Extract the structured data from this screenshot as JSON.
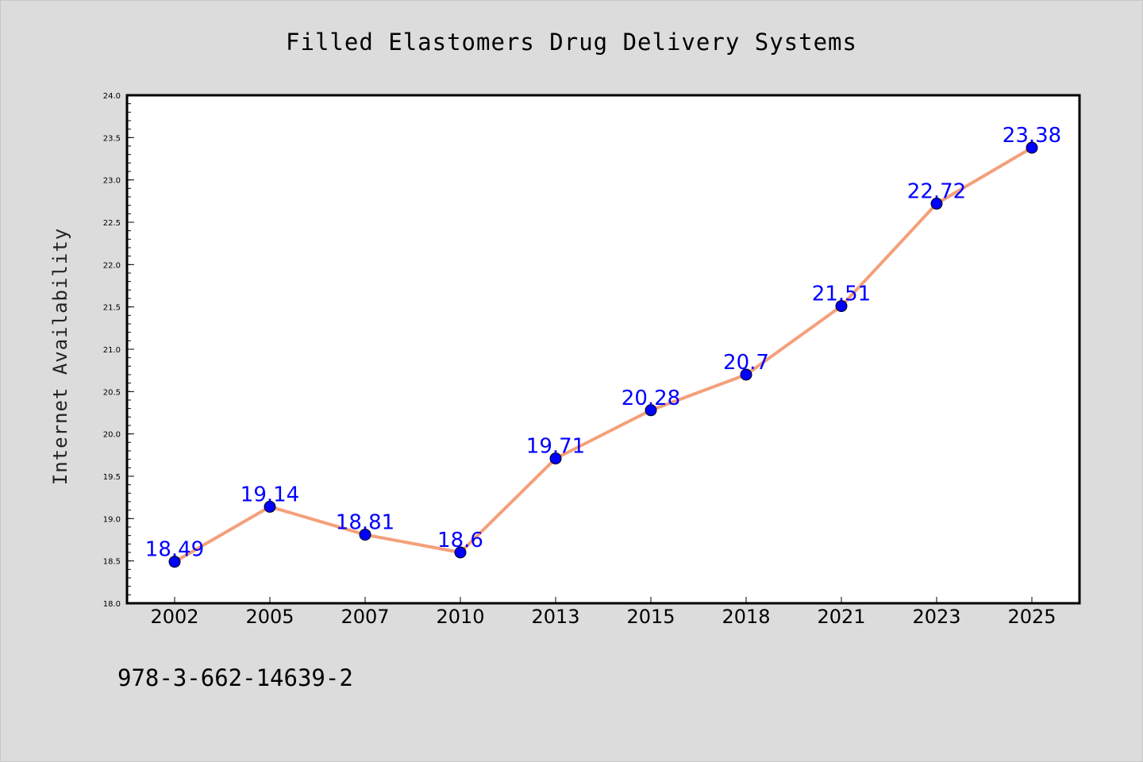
{
  "chart_data": {
    "type": "line",
    "title": "Filled Elastomers Drug Delivery Systems",
    "xlabel": "",
    "ylabel": "Internet Availability",
    "categories": [
      "2002",
      "2005",
      "2007",
      "2010",
      "2013",
      "2015",
      "2018",
      "2021",
      "2023",
      "2025"
    ],
    "series": [
      {
        "values": [
          18.49,
          19.14,
          18.81,
          18.6,
          19.71,
          20.28,
          20.7,
          21.51,
          22.72,
          23.38
        ],
        "labels": [
          "18.49",
          "19.14",
          "18.81",
          "18.6",
          "19.71",
          "20.28",
          "20.7",
          "21.51",
          "22.72",
          "23.38"
        ]
      }
    ],
    "ylim": [
      18.0,
      24.0
    ],
    "yticks": [
      "18.0",
      "18.5",
      "19.0",
      "19.5",
      "20.0",
      "20.5",
      "21.0",
      "21.5",
      "22.0",
      "22.5",
      "23.0",
      "23.5",
      "24.0"
    ],
    "grid": false,
    "legend": "none",
    "colors": {
      "line": "#f4a07a",
      "marker": "#0000ff",
      "data_label": "#0000ff",
      "background": "#dcdcdc",
      "plot_area": "#ffffff"
    }
  },
  "footer": {
    "text": "978-3-662-14639-2"
  }
}
